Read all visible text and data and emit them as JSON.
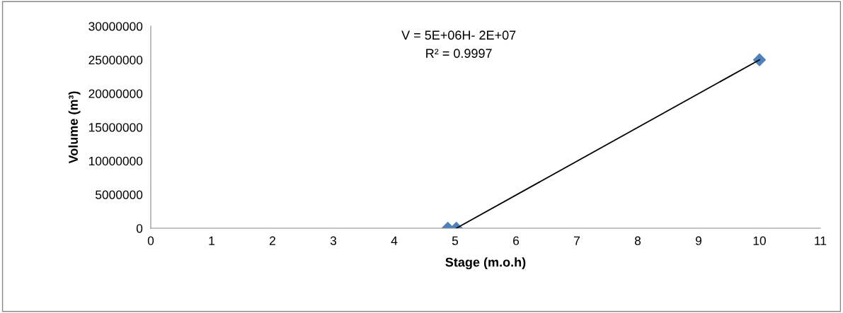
{
  "chart_data": {
    "type": "scatter",
    "xlabel": "Stage (m.o.h)",
    "ylabel": "Volume (m³)",
    "xlim": [
      0,
      11
    ],
    "xticks": [
      0,
      1,
      2,
      3,
      4,
      5,
      6,
      7,
      8,
      9,
      10,
      11
    ],
    "ylim": [
      0,
      30000000
    ],
    "yticks": [
      0,
      5000000,
      10000000,
      15000000,
      20000000,
      25000000,
      30000000
    ],
    "grid": false,
    "marker": "diamond",
    "series": [
      {
        "color": "#4f81bd",
        "x": [
          4.88,
          5.02,
          10
        ],
        "values": [
          0,
          0,
          25000000
        ]
      },
      {
        "type": "line",
        "color": "#000000",
        "marker": "none",
        "x": [
          5.02,
          10
        ],
        "values": [
          0,
          25000000
        ]
      }
    ],
    "annotations": [
      "V = 5E+06H- 2E+07",
      "R² = 0.9997"
    ]
  }
}
